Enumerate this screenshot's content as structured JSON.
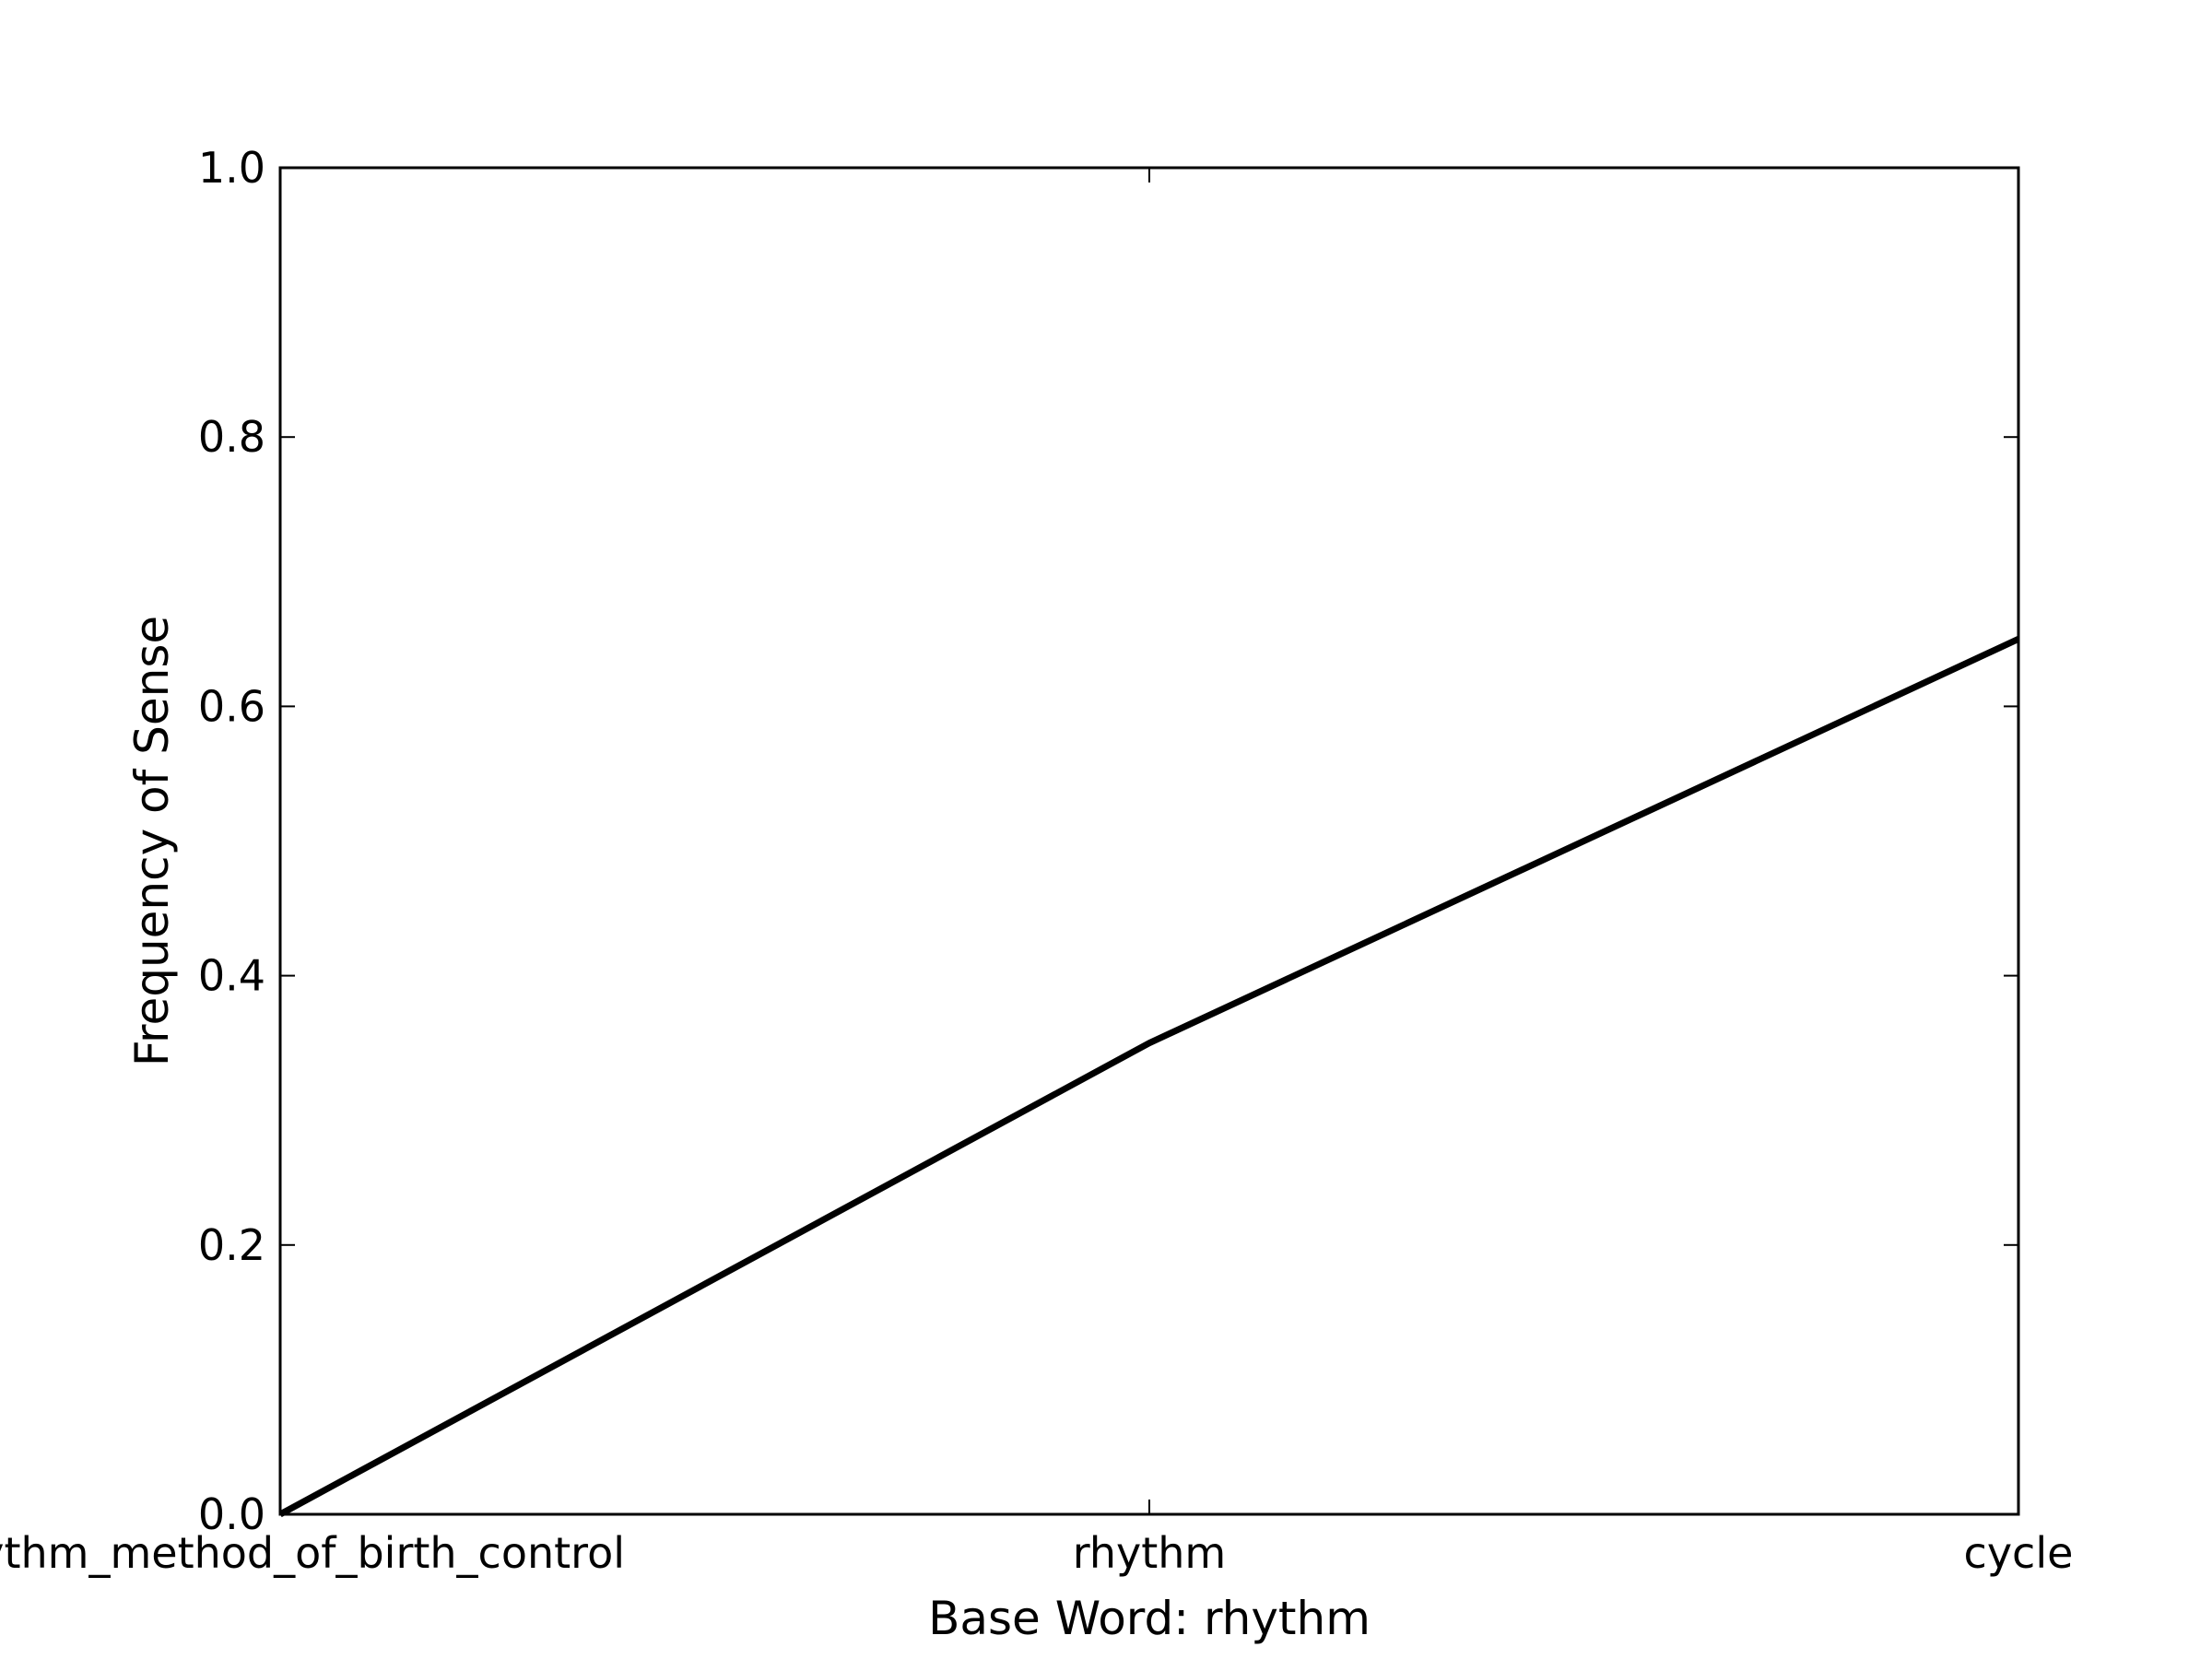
{
  "chart_data": {
    "type": "line",
    "title": "",
    "xlabel": "Base Word: rhythm",
    "ylabel": "Frequency of Sense",
    "categories": [
      "rhythm_method_of_birth_control",
      "rhythm",
      "cycle"
    ],
    "series": [
      {
        "values": [
          0.0,
          0.35,
          0.65
        ],
        "color": "#000000"
      }
    ],
    "ylim": [
      0,
      1.0
    ],
    "yticks": [
      "0.0",
      "0.2",
      "0.4",
      "0.6",
      "0.8",
      "1.0"
    ],
    "grid": false,
    "legend": "none"
  }
}
